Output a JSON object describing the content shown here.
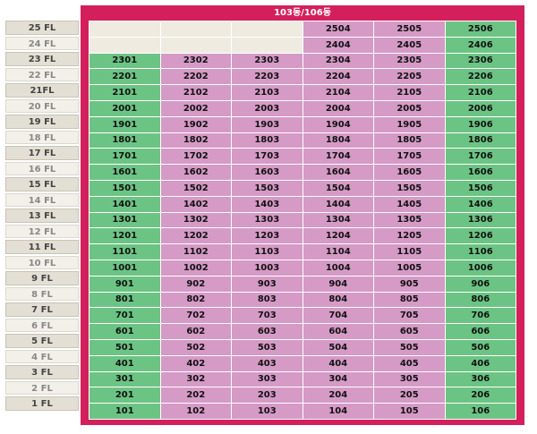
{
  "title": "103동/106동",
  "colors": {
    "frame": "#d3205c",
    "green": "#6cc484",
    "pink": "#d59ac6",
    "empty": "#efebe1"
  },
  "floors": [
    {
      "label": "25 FL",
      "units": [
        "",
        "",
        "",
        "2504",
        "2505",
        "2506"
      ]
    },
    {
      "label": "24 FL",
      "units": [
        "",
        "",
        "",
        "2404",
        "2405",
        "2406"
      ]
    },
    {
      "label": "23 FL",
      "units": [
        "2301",
        "2302",
        "2303",
        "2304",
        "2305",
        "2306"
      ]
    },
    {
      "label": "22 FL",
      "units": [
        "2201",
        "2202",
        "2203",
        "2204",
        "2205",
        "2206"
      ]
    },
    {
      "label": "21FL",
      "units": [
        "2101",
        "2102",
        "2103",
        "2104",
        "2105",
        "2106"
      ]
    },
    {
      "label": "20 FL",
      "units": [
        "2001",
        "2002",
        "2003",
        "2004",
        "2005",
        "2006"
      ]
    },
    {
      "label": "19 FL",
      "units": [
        "1901",
        "1902",
        "1903",
        "1904",
        "1905",
        "1906"
      ]
    },
    {
      "label": "18 FL",
      "units": [
        "1801",
        "1802",
        "1803",
        "1804",
        "1805",
        "1806"
      ]
    },
    {
      "label": "17 FL",
      "units": [
        "1701",
        "1702",
        "1703",
        "1704",
        "1705",
        "1706"
      ]
    },
    {
      "label": "16 FL",
      "units": [
        "1601",
        "1602",
        "1603",
        "1604",
        "1605",
        "1606"
      ]
    },
    {
      "label": "15 FL",
      "units": [
        "1501",
        "1502",
        "1503",
        "1504",
        "1505",
        "1506"
      ]
    },
    {
      "label": "14 FL",
      "units": [
        "1401",
        "1402",
        "1403",
        "1404",
        "1405",
        "1406"
      ]
    },
    {
      "label": "13 FL",
      "units": [
        "1301",
        "1302",
        "1303",
        "1304",
        "1305",
        "1306"
      ]
    },
    {
      "label": "12 FL",
      "units": [
        "1201",
        "1202",
        "1203",
        "1204",
        "1205",
        "1206"
      ]
    },
    {
      "label": "11 FL",
      "units": [
        "1101",
        "1102",
        "1103",
        "1104",
        "1105",
        "1106"
      ]
    },
    {
      "label": "10 FL",
      "units": [
        "1001",
        "1002",
        "1003",
        "1004",
        "1005",
        "1006"
      ]
    },
    {
      "label": "9 FL",
      "units": [
        "901",
        "902",
        "903",
        "904",
        "905",
        "906"
      ]
    },
    {
      "label": "8 FL",
      "units": [
        "801",
        "802",
        "803",
        "804",
        "805",
        "806"
      ]
    },
    {
      "label": "7 FL",
      "units": [
        "701",
        "702",
        "703",
        "704",
        "705",
        "706"
      ]
    },
    {
      "label": "6 FL",
      "units": [
        "601",
        "602",
        "603",
        "604",
        "605",
        "606"
      ]
    },
    {
      "label": "5 FL",
      "units": [
        "501",
        "502",
        "503",
        "504",
        "505",
        "506"
      ]
    },
    {
      "label": "4 FL",
      "units": [
        "401",
        "402",
        "403",
        "404",
        "405",
        "406"
      ]
    },
    {
      "label": "3 FL",
      "units": [
        "301",
        "302",
        "303",
        "304",
        "305",
        "306"
      ]
    },
    {
      "label": "2 FL",
      "units": [
        "201",
        "202",
        "203",
        "204",
        "205",
        "206"
      ]
    },
    {
      "label": "1 FL",
      "units": [
        "101",
        "102",
        "103",
        "104",
        "105",
        "106"
      ]
    }
  ]
}
